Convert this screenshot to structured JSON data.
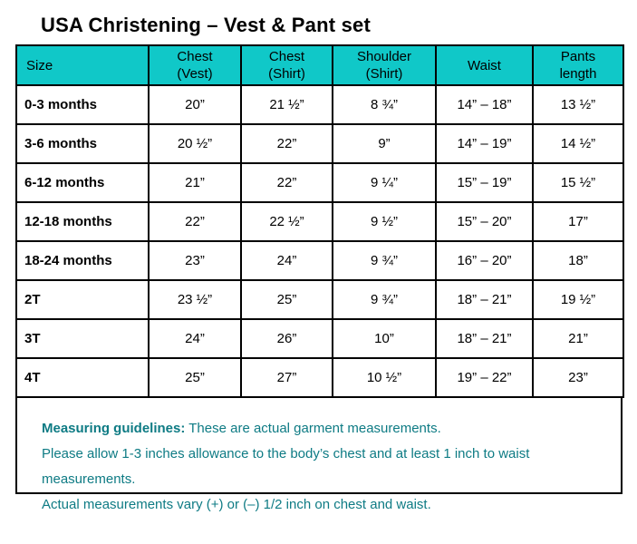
{
  "title": "USA Christening – Vest & Pant set",
  "colors": {
    "header_bg": "#10C8C8",
    "border": "#000000",
    "guidelines_text": "#0E7B84"
  },
  "table": {
    "columns": [
      "Size",
      "Chest\n(Vest)",
      "Chest\n(Shirt)",
      "Shoulder\n(Shirt)",
      "Waist",
      "Pants\nlength"
    ],
    "rows": [
      [
        "0-3 months",
        "20”",
        "21 ½”",
        "8 ¾”",
        "14” – 18”",
        "13 ½”"
      ],
      [
        "3-6 months",
        "20 ½”",
        "22”",
        "9”",
        "14” – 19”",
        "14 ½”"
      ],
      [
        "6-12 months",
        "21”",
        "22”",
        "9 ¼”",
        "15” – 19”",
        "15 ½”"
      ],
      [
        "12-18 months",
        "22”",
        "22 ½”",
        "9 ½”",
        "15” – 20”",
        "17”"
      ],
      [
        "18-24 months",
        "23”",
        "24”",
        "9 ¾”",
        "16” – 20”",
        "18”"
      ],
      [
        "2T",
        "23 ½”",
        "25”",
        "9 ¾”",
        "18” – 21”",
        "19 ½”"
      ],
      [
        "3T",
        "24”",
        "26”",
        "10”",
        "18” – 21”",
        "21”"
      ],
      [
        "4T",
        "25”",
        "27”",
        "10 ½”",
        "19” – 22”",
        "23”"
      ]
    ]
  },
  "guidelines": {
    "heading": "Measuring guidelines:",
    "line1": "These are actual garment measurements.",
    "line2": "Please allow 1-3 inches allowance to the body’s chest and at least 1 inch to waist measurements.",
    "line3": "Actual measurements vary (+) or (–) 1/2 inch on chest and waist."
  }
}
